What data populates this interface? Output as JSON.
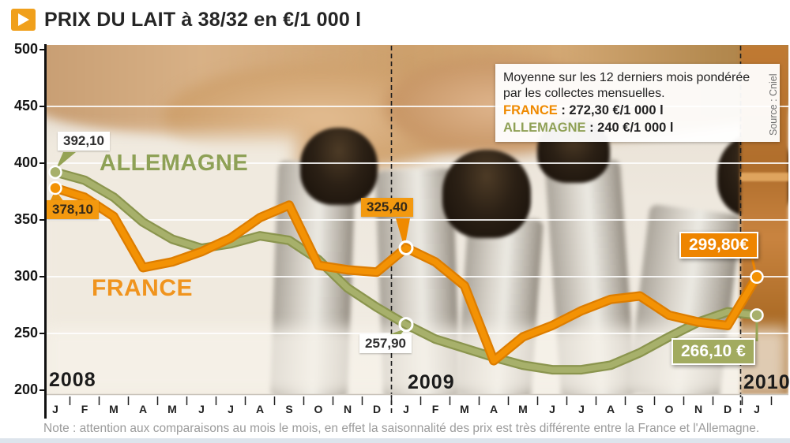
{
  "title": {
    "text": "PRIX DU LAIT à 38/32 en €/1 000 l",
    "icon": "play-triangle-icon"
  },
  "source": "Source : Cniel",
  "note": "Note : attention aux comparaisons au mois le mois, en effet la saisonnalité des prix est très différente entre la France et l'Allemagne.",
  "info_box": {
    "line1": "Moyenne sur les 12 derniers mois pondérée",
    "line2": "par les collectes mensuelles.",
    "entries": [
      {
        "name": "FRANCE",
        "rest": " : 272,30 €/1 000 l",
        "color": "#ef8a00"
      },
      {
        "name": "ALLEMAGNE",
        "rest": " : 240 €/1 000 l",
        "color": "#8fa055"
      }
    ]
  },
  "chart_data": {
    "type": "line",
    "title": "PRIX DU LAIT à 38/32 en €/1 000 l",
    "ylabel": "€/1 000 l",
    "ylim": [
      200,
      500
    ],
    "yticks": [
      200,
      250,
      300,
      350,
      400,
      450,
      500
    ],
    "gridlines": [
      250,
      300,
      350,
      400,
      450
    ],
    "grid_color": "#ffffff",
    "years": [
      {
        "label": "2008",
        "months": [
          "J",
          "F",
          "M",
          "A",
          "M",
          "J",
          "J",
          "A",
          "S",
          "O",
          "N",
          "D"
        ]
      },
      {
        "label": "2009",
        "months": [
          "J",
          "F",
          "M",
          "A",
          "M",
          "J",
          "J",
          "A",
          "S",
          "O",
          "N",
          "D"
        ]
      },
      {
        "label": "2010",
        "months": [
          "J"
        ]
      }
    ],
    "series": [
      {
        "name": "ALLEMAGNE",
        "color": "#a7b06b",
        "edge": "#8b954e",
        "values": [
          392.1,
          385,
          370,
          348,
          333,
          325,
          329,
          336,
          332,
          315,
          290,
          273,
          257.9,
          245,
          237,
          229,
          222,
          218,
          218,
          222,
          233,
          247,
          260,
          269,
          266.1
        ]
      },
      {
        "name": "FRANCE",
        "color": "#f39204",
        "edge": "#dd7d00",
        "values": [
          378.1,
          370,
          353,
          308,
          313,
          322,
          334,
          352,
          363,
          310,
          306,
          304,
          325.4,
          313,
          292,
          226,
          247,
          257,
          270,
          280,
          283,
          266,
          260,
          257,
          299.8
        ]
      }
    ],
    "markers": [
      {
        "series": 0,
        "index": 0,
        "style": "filled"
      },
      {
        "series": 1,
        "index": 0,
        "style": "filled"
      },
      {
        "series": 0,
        "index": 12,
        "style": "open"
      },
      {
        "series": 1,
        "index": 12,
        "style": "open"
      },
      {
        "series": 0,
        "index": 24,
        "style": "filled"
      },
      {
        "series": 1,
        "index": 24,
        "style": "filled"
      }
    ],
    "annotations": [
      {
        "text": "392,10",
        "series": "ALLEMAGNE",
        "point": "Jan 2008"
      },
      {
        "text": "378,10",
        "series": "FRANCE",
        "point": "Jan 2008"
      },
      {
        "text": "325,40",
        "series": "FRANCE",
        "point": "Jan 2009"
      },
      {
        "text": "257,90",
        "series": "ALLEMAGNE",
        "point": "Jan 2009"
      },
      {
        "text": "299,80€",
        "series": "FRANCE",
        "point": "Jan 2010"
      },
      {
        "text": "266,10 €",
        "series": "ALLEMAGNE",
        "point": "Jan 2010"
      }
    ],
    "legend_position": "top-right",
    "grid": true
  }
}
